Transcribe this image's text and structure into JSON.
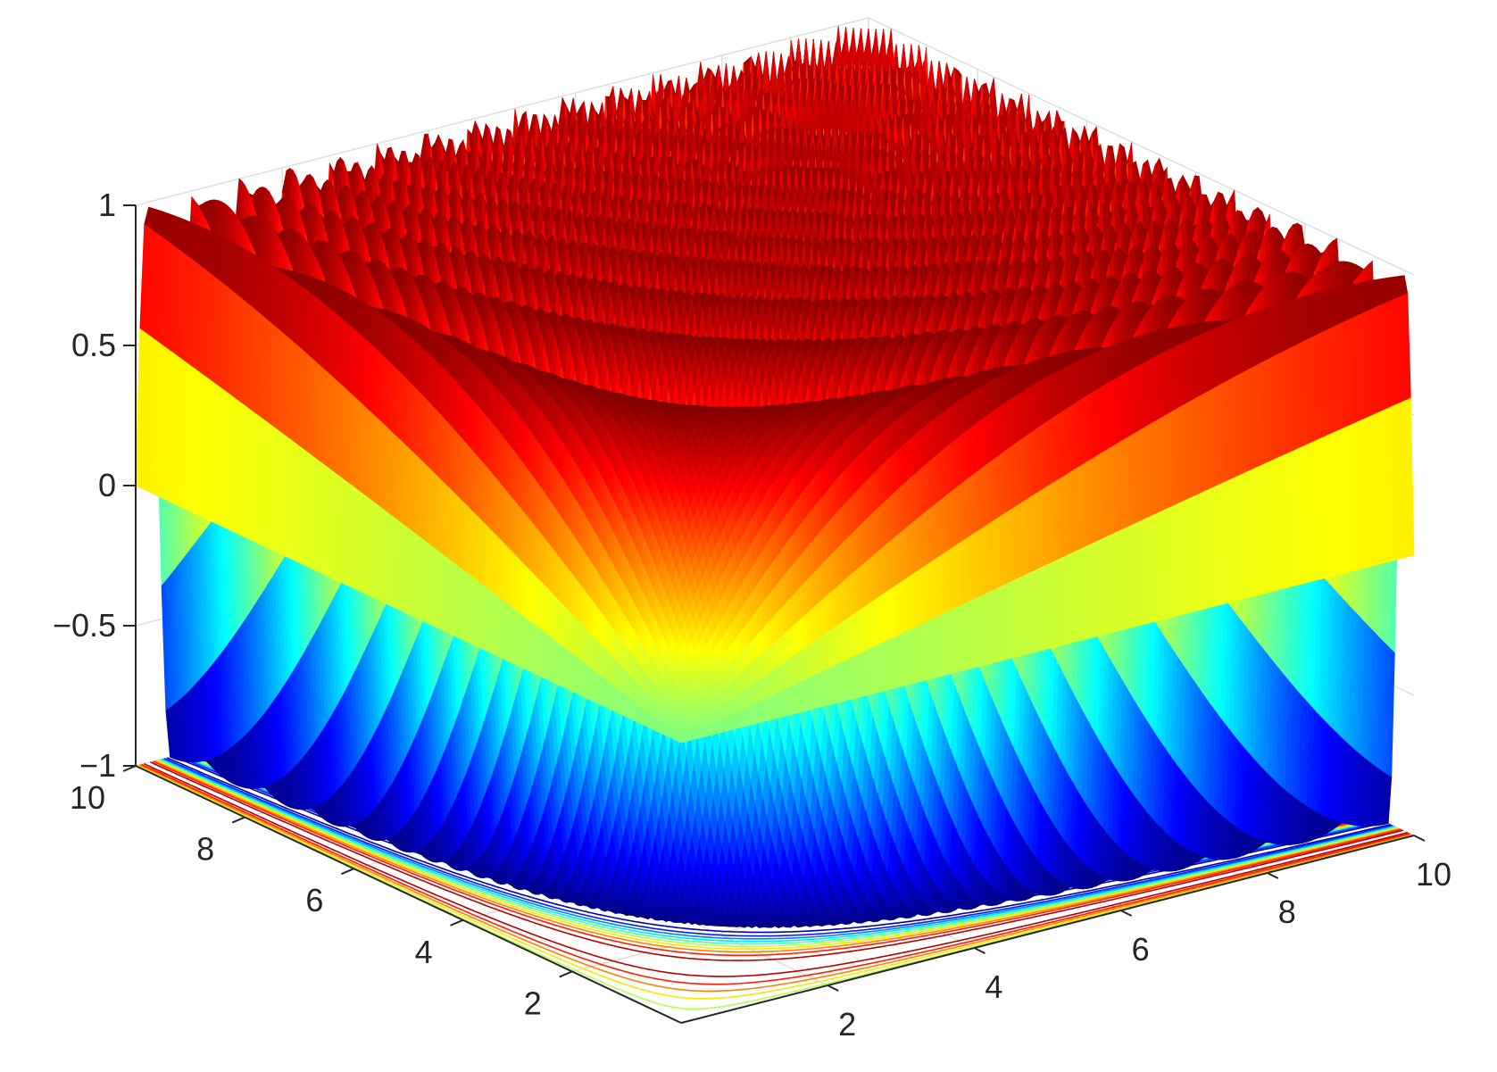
{
  "chart_data": {
    "type": "surface",
    "title": "",
    "xlabel": "",
    "ylabel": "",
    "zlabel": "",
    "function": "sin(x*y)",
    "xlim": [
      0,
      10
    ],
    "ylim": [
      0,
      10
    ],
    "zlim": [
      -1,
      1
    ],
    "x_ticks": [
      2,
      4,
      6,
      8,
      10
    ],
    "y_ticks": [
      2,
      4,
      6,
      8,
      10
    ],
    "z_ticks": [
      -1,
      -0.5,
      0,
      0.5,
      1
    ],
    "x_tick_labels": [
      "2",
      "4",
      "6",
      "8",
      "10"
    ],
    "y_tick_labels": [
      "2",
      "4",
      "6",
      "8",
      "10"
    ],
    "z_tick_labels": [
      "−1",
      "−0.5",
      "0",
      "0.5",
      "1"
    ],
    "colormap": "jet",
    "contour_on_floor": true,
    "contour_levels": [
      -0.9,
      -0.7,
      -0.5,
      -0.3,
      -0.1,
      0.1,
      0.3,
      0.5,
      0.7,
      0.9
    ],
    "grid": true
  }
}
